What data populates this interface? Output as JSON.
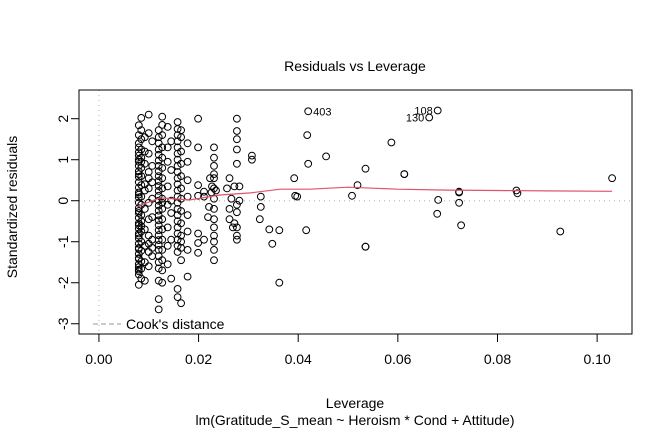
{
  "chart_data": {
    "type": "scatter",
    "title": "Residuals vs Leverage",
    "xlabel": "Leverage",
    "sublabel": "lm(Gratitude_S_mean ~ Heroism * Cond + Attitude)",
    "ylabel": "Standardized residuals",
    "xlim": [
      -0.004,
      0.107
    ],
    "ylim": [
      -3.25,
      2.7
    ],
    "xticks": [
      0.0,
      0.02,
      0.04,
      0.06,
      0.08,
      0.1
    ],
    "xtick_labels": [
      "0.00",
      "0.02",
      "0.04",
      "0.06",
      "0.08",
      "0.10"
    ],
    "yticks": [
      -3,
      -2,
      -1,
      0,
      1,
      2
    ],
    "ytick_labels": [
      "-3",
      "-2",
      "-1",
      "0",
      "1",
      "2"
    ],
    "legend": {
      "label": "Cook's distance",
      "placement": "bottom-left"
    },
    "colors": {
      "points": "#000000",
      "smooth": "#df536b",
      "reference": "#bebebe",
      "cook": "#999999"
    },
    "labeled_points": [
      {
        "label": "403",
        "x": 0.042,
        "y": 2.18
      },
      {
        "label": "108",
        "x": 0.068,
        "y": 2.2
      },
      {
        "label": "130",
        "x": 0.0663,
        "y": 2.03
      }
    ],
    "smooth_line": {
      "x": [
        0.0077,
        0.0122,
        0.0183,
        0.0243,
        0.0304,
        0.0364,
        0.0424,
        0.05,
        0.06,
        0.07,
        0.08,
        0.09,
        0.103
      ],
      "y": [
        -0.14,
        0.07,
        0.02,
        0.14,
        0.19,
        0.28,
        0.28,
        0.33,
        0.28,
        0.26,
        0.25,
        0.24,
        0.23
      ]
    },
    "points": {
      "x": [
        0.008,
        0.008,
        0.008,
        0.008,
        0.008,
        0.008,
        0.008,
        0.008,
        0.008,
        0.008,
        0.008,
        0.008,
        0.008,
        0.008,
        0.008,
        0.008,
        0.008,
        0.008,
        0.008,
        0.008,
        0.008,
        0.008,
        0.008,
        0.008,
        0.008,
        0.008,
        0.008,
        0.008,
        0.008,
        0.008,
        0.008,
        0.008,
        0.008,
        0.008,
        0.008,
        0.008,
        0.008,
        0.008,
        0.008,
        0.008,
        0.0085,
        0.0085,
        0.0085,
        0.0085,
        0.0085,
        0.0085,
        0.0085,
        0.0085,
        0.0085,
        0.0085,
        0.0085,
        0.0085,
        0.0085,
        0.0085,
        0.0085,
        0.0085,
        0.0085,
        0.0085,
        0.0085,
        0.0085,
        0.0092,
        0.0092,
        0.0092,
        0.0092,
        0.0092,
        0.0092,
        0.0092,
        0.0092,
        0.0092,
        0.0092,
        0.01,
        0.01,
        0.01,
        0.01,
        0.01,
        0.01,
        0.01,
        0.01,
        0.01,
        0.01,
        0.01,
        0.01,
        0.0107,
        0.0107,
        0.0107,
        0.0107,
        0.0107,
        0.0107,
        0.0107,
        0.0107,
        0.012,
        0.012,
        0.012,
        0.012,
        0.012,
        0.012,
        0.012,
        0.012,
        0.012,
        0.012,
        0.012,
        0.012,
        0.012,
        0.012,
        0.012,
        0.012,
        0.012,
        0.012,
        0.012,
        0.012,
        0.012,
        0.012,
        0.012,
        0.012,
        0.012,
        0.012,
        0.012,
        0.012,
        0.012,
        0.012,
        0.0127,
        0.0127,
        0.0127,
        0.0127,
        0.0127,
        0.0127,
        0.0127,
        0.0127,
        0.0127,
        0.0127,
        0.0127,
        0.0127,
        0.0127,
        0.0127,
        0.0127,
        0.0127,
        0.0127,
        0.0127,
        0.0138,
        0.0138,
        0.0138,
        0.0138,
        0.0138,
        0.0138,
        0.0138,
        0.0138,
        0.0145,
        0.0145,
        0.0145,
        0.0145,
        0.0145,
        0.0145,
        0.0158,
        0.0158,
        0.0158,
        0.0158,
        0.0158,
        0.0158,
        0.0158,
        0.0158,
        0.0158,
        0.0158,
        0.0158,
        0.0158,
        0.0158,
        0.0158,
        0.0158,
        0.0158,
        0.0158,
        0.0158,
        0.0158,
        0.0158,
        0.0158,
        0.0158,
        0.0158,
        0.0158,
        0.0165,
        0.0165,
        0.0165,
        0.0165,
        0.0165,
        0.0165,
        0.0165,
        0.0165,
        0.0165,
        0.0165,
        0.0165,
        0.0165,
        0.0165,
        0.0165,
        0.0178,
        0.0178,
        0.0178,
        0.0178,
        0.0178,
        0.0178,
        0.0178,
        0.0178,
        0.0199,
        0.0199,
        0.0199,
        0.0199,
        0.0199,
        0.0199,
        0.0199,
        0.0211,
        0.0211,
        0.0211,
        0.0231,
        0.0231,
        0.0231,
        0.0231,
        0.0231,
        0.0231,
        0.0231,
        0.0231,
        0.0231,
        0.0231,
        0.0231,
        0.0231,
        0.0231,
        0.0231,
        0.0223,
        0.0227,
        0.0219,
        0.0235,
        0.0221,
        0.0226,
        0.0262,
        0.0257,
        0.0266,
        0.0262,
        0.0262,
        0.0269,
        0.0277,
        0.0277,
        0.0277,
        0.0277,
        0.0277,
        0.0282,
        0.0272,
        0.0277,
        0.0272,
        0.0277,
        0.0277,
        0.0282,
        0.0277,
        0.0277,
        0.0307,
        0.0307,
        0.0325,
        0.0323,
        0.0348,
        0.0325,
        0.0342,
        0.0362,
        0.0362,
        0.0392,
        0.0394,
        0.0398,
        0.0418,
        0.042,
        0.0416,
        0.0456,
        0.0508,
        0.0519,
        0.0535,
        0.0535,
        0.0535,
        0.0587,
        0.0613,
        0.0613,
        0.0681,
        0.0679,
        0.0723,
        0.0723,
        0.0727,
        0.0723,
        0.0838,
        0.084,
        0.0926,
        0.103
      ],
      "y": [
        1.84,
        1.6,
        1.4,
        1.18,
        1.0,
        0.85,
        0.72,
        0.58,
        0.45,
        0.32,
        0.2,
        0.08,
        -0.05,
        -0.18,
        -0.3,
        -0.42,
        -0.55,
        -0.68,
        -0.8,
        -0.92,
        -1.05,
        -1.18,
        -1.3,
        -1.42,
        -1.55,
        -1.68,
        -1.8,
        -2.05,
        -0.25,
        0.65,
        1.1,
        -0.6,
        0.95,
        -1.4,
        -1.62,
        0.15,
        -0.85,
        1.3,
        -1.15,
        -1.72,
        2.02,
        1.72,
        1.5,
        1.25,
        1.05,
        0.8,
        0.6,
        0.38,
        0.1,
        -0.1,
        -0.35,
        -0.5,
        -0.75,
        -1.0,
        -1.22,
        -1.48,
        -1.66,
        -1.9,
        0.95,
        -0.62,
        1.55,
        1.2,
        0.9,
        0.4,
        -0.2,
        -0.7,
        -1.1,
        -1.5,
        -1.95,
        0.25,
        2.1,
        1.65,
        1.15,
        0.7,
        0.3,
        -0.05,
        -0.45,
        -0.85,
        -1.25,
        -1.6,
        0.55,
        -1.05,
        1.45,
        0.85,
        0.05,
        -0.4,
        -1.15,
        -1.35,
        0.45,
        -0.95,
        1.72,
        1.55,
        1.4,
        1.25,
        1.12,
        0.98,
        0.85,
        0.72,
        0.6,
        0.48,
        0.36,
        0.24,
        0.12,
        0.0,
        -0.12,
        -0.24,
        -0.36,
        -0.48,
        -0.6,
        -0.72,
        -0.84,
        -0.96,
        -1.08,
        -1.2,
        -1.35,
        -1.5,
        -1.65,
        -1.95,
        -2.4,
        -2.65,
        2.05,
        1.6,
        1.3,
        1.05,
        0.8,
        0.55,
        0.3,
        0.05,
        -0.2,
        -0.45,
        -0.7,
        -0.95,
        -1.2,
        -1.45,
        -1.7,
        1.85,
        -0.05,
        -2.0,
        1.8,
        1.3,
        0.95,
        0.35,
        -0.1,
        -0.65,
        -1.1,
        -1.55,
        1.45,
        0.75,
        0.0,
        -0.3,
        -0.95,
        -1.9,
        1.92,
        1.75,
        1.6,
        1.45,
        1.3,
        1.15,
        1.0,
        0.85,
        0.7,
        0.55,
        0.4,
        0.25,
        0.1,
        -0.05,
        -0.2,
        -0.35,
        -0.5,
        -0.65,
        -0.8,
        -0.95,
        -1.1,
        -1.25,
        -2.15,
        -2.35,
        1.72,
        1.55,
        1.2,
        0.9,
        0.6,
        0.3,
        0.05,
        -0.25,
        -0.55,
        -0.85,
        -1.15,
        -1.45,
        -2.5,
        -1.0,
        1.4,
        0.95,
        0.5,
        0.1,
        -0.35,
        -0.75,
        -1.2,
        -1.85,
        2.0,
        1.3,
        0.38,
        0.12,
        -0.8,
        -1.27,
        -1.03,
        0.22,
        0.1,
        -0.95,
        1.3,
        1.05,
        0.85,
        0.65,
        0.3,
        0.05,
        -0.2,
        -0.45,
        -0.65,
        -0.85,
        -1.0,
        -1.2,
        -1.45,
        0.55,
        0.55,
        0.35,
        -0.4,
        0.25,
        -0.15,
        0.2,
        0.55,
        0.3,
        0.05,
        -0.2,
        -0.45,
        -0.65,
        2.0,
        1.7,
        1.5,
        1.25,
        0.9,
        0.35,
        0.35,
        -0.1,
        -0.55,
        -0.85,
        -0.28,
        0.0,
        -0.65,
        -0.95,
        1.1,
        1.0,
        -0.15,
        -0.45,
        -1.05,
        0.1,
        -0.7,
        -2.0,
        -0.72,
        0.55,
        0.12,
        0.1,
        1.6,
        0.9,
        -0.72,
        1.08,
        0.12,
        0.38,
        0.78,
        -1.12,
        -1.12,
        1.42,
        0.65,
        0.65,
        0.02,
        -0.32,
        0.22,
        -0.05,
        -0.6,
        0.2,
        0.25,
        0.18,
        -0.75,
        0.55
      ]
    }
  }
}
